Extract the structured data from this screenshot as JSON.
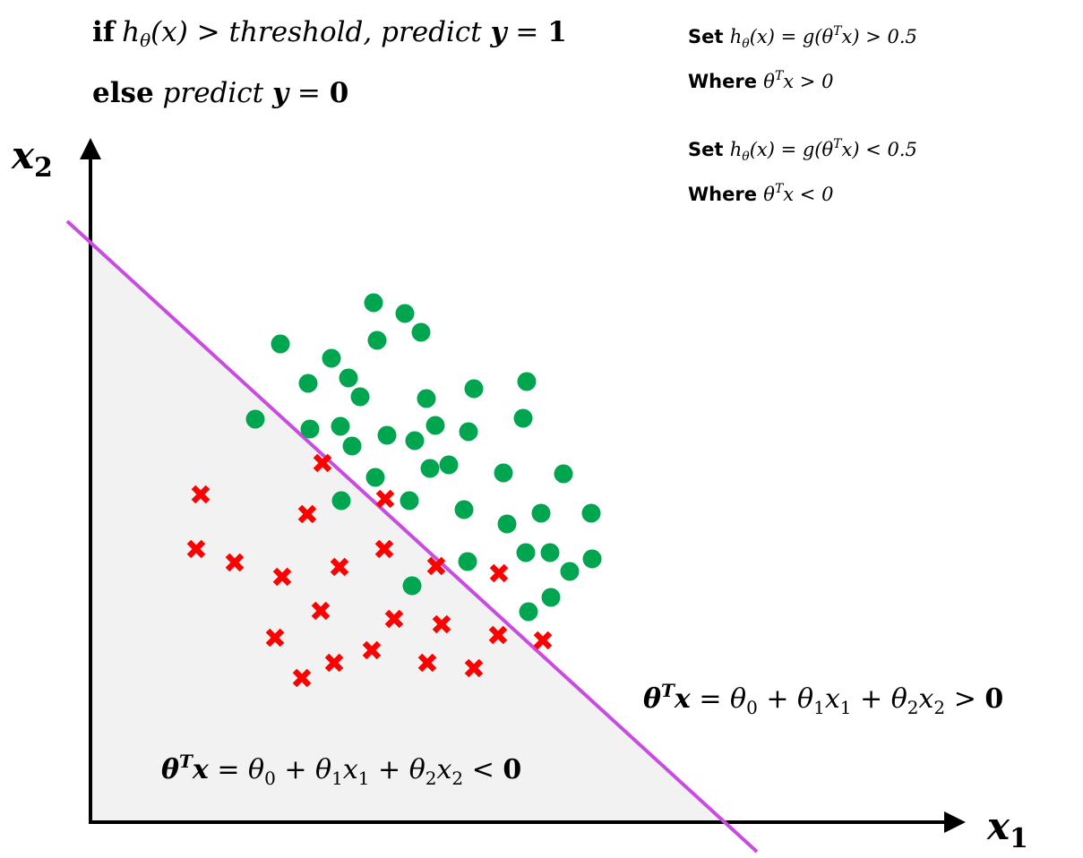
{
  "header": {
    "rule1": {
      "if": "if",
      "h": "h",
      "theta_sub": "θ",
      "arg": "(x) > ",
      "threshold": "threshold,",
      "predict": " predict ",
      "y": "y",
      "eq": " = ",
      "one": "1"
    },
    "rule2": {
      "else": "else",
      "predict": " predict ",
      "y": "y",
      "eq": " = ",
      "zero": "0"
    }
  },
  "notes": {
    "set1": {
      "set": "Set ",
      "h": "h",
      "theta_sub": "θ",
      "mid": "(x) = g(θ",
      "T": "T",
      "end": "x) > 0.5"
    },
    "where1": {
      "where": "Where ",
      "theta": "θ",
      "T": "T",
      "end": "x > 0"
    },
    "set2": {
      "set": "Set ",
      "h": "h",
      "theta_sub": "θ",
      "mid": "(x) = g(θ",
      "T": "T",
      "end": "x) < 0.5"
    },
    "where2": {
      "where": "Where ",
      "theta": "θ",
      "T": "T",
      "end": "x < 0"
    }
  },
  "axes": {
    "x_label": "x",
    "x_sub": "1",
    "y_label": "x",
    "y_sub": "2"
  },
  "regions": {
    "positive": {
      "theta": "θ",
      "T": "T",
      "x": "x",
      "eq": " = θ",
      "s0": "0",
      "p1": " + θ",
      "s1": "1",
      "x1": "x",
      "s1b": "1",
      "p2": " + θ",
      "s2": "2",
      "x2": "x",
      "s2b": "2",
      "cmp": " > ",
      "val": "0"
    },
    "negative": {
      "theta": "θ",
      "T": "T",
      "x": "x",
      "eq": " = θ",
      "s0": "0",
      "p1": " + θ",
      "s1": "1",
      "x1": "x",
      "s1b": "1",
      "p2": " + θ",
      "s2": "2",
      "x2": "x",
      "s2b": "2",
      "cmp": " < ",
      "val": "0"
    }
  },
  "colors": {
    "boundary": "#c94ce0",
    "positive_class": "#00a550",
    "negative_class": "#ff0000",
    "shaded_region": "#f2f2f2",
    "axis": "#000000"
  },
  "chart_data": {
    "type": "scatter",
    "positive_points": [
      [
        417,
        338
      ],
      [
        452,
        350
      ],
      [
        421,
        380
      ],
      [
        470,
        371
      ],
      [
        313,
        384
      ],
      [
        370,
        400
      ],
      [
        389,
        422
      ],
      [
        344,
        428
      ],
      [
        402,
        443
      ],
      [
        476,
        445
      ],
      [
        529,
        434
      ],
      [
        588,
        426
      ],
      [
        285,
        468
      ],
      [
        346,
        479
      ],
      [
        380,
        476
      ],
      [
        432,
        486
      ],
      [
        463,
        492
      ],
      [
        486,
        475
      ],
      [
        523,
        482
      ],
      [
        584,
        467
      ],
      [
        393,
        498
      ],
      [
        419,
        533
      ],
      [
        480,
        523
      ],
      [
        501,
        519
      ],
      [
        562,
        528
      ],
      [
        629,
        529
      ],
      [
        381,
        559
      ],
      [
        457,
        559
      ],
      [
        518,
        569
      ],
      [
        566,
        585
      ],
      [
        604,
        573
      ],
      [
        660,
        573
      ],
      [
        587,
        617
      ],
      [
        614,
        617
      ],
      [
        661,
        624
      ],
      [
        522,
        627
      ],
      [
        636,
        638
      ],
      [
        460,
        654
      ],
      [
        615,
        667
      ],
      [
        590,
        683
      ]
    ],
    "negative_points": [
      [
        224,
        552
      ],
      [
        360,
        517
      ],
      [
        343,
        574
      ],
      [
        430,
        557
      ],
      [
        219,
        613
      ],
      [
        262,
        628
      ],
      [
        315,
        644
      ],
      [
        379,
        633
      ],
      [
        429,
        613
      ],
      [
        487,
        632
      ],
      [
        557,
        640
      ],
      [
        358,
        682
      ],
      [
        440,
        691
      ],
      [
        493,
        697
      ],
      [
        556,
        709
      ],
      [
        606,
        715
      ],
      [
        307,
        712
      ],
      [
        415,
        726
      ],
      [
        373,
        740
      ],
      [
        477,
        740
      ],
      [
        529,
        746
      ],
      [
        337,
        757
      ]
    ]
  }
}
